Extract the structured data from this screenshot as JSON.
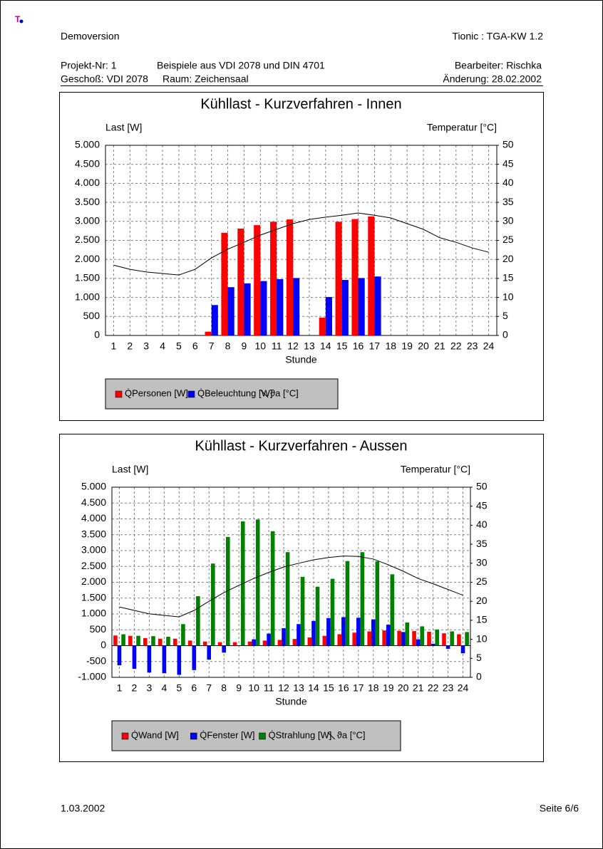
{
  "logo": "T",
  "header": {
    "left": "Demoversion",
    "right": "Tionic : TGA-KW 1.2",
    "rows": [
      [
        "Projekt-Nr: 1",
        "Beispiele aus VDI 2078 und DIN 4701",
        "Bearbeiter: Rischka"
      ],
      [
        "Geschoß: VDI 2078",
        "Raum: Zeichensaal",
        "Änderung: 28.02.2002"
      ]
    ]
  },
  "footer": {
    "date": "1.03.2002",
    "page": "Seite 6/6"
  },
  "chart_data": [
    {
      "type": "bar",
      "title": "Kühllast - Kurzverfahren - Innen",
      "ylabel": "Last [W]",
      "y2label": "Temperatur [°C]",
      "xlabel": "Stunde",
      "categories": [
        "1",
        "2",
        "3",
        "4",
        "5",
        "6",
        "7",
        "8",
        "9",
        "10",
        "11",
        "12",
        "13",
        "14",
        "15",
        "16",
        "17",
        "18",
        "19",
        "20",
        "21",
        "22",
        "23",
        "24"
      ],
      "series": [
        {
          "name": "Q̇Personen [W]",
          "color": "#ff0000",
          "values": [
            0,
            0,
            0,
            0,
            0,
            0,
            100,
            2700,
            2810,
            2900,
            2990,
            3050,
            0,
            470,
            2990,
            3060,
            3130,
            0,
            0,
            0,
            0,
            0,
            0,
            0
          ]
        },
        {
          "name": "Q̇Beleuchtung [W]",
          "color": "#0000ff",
          "values": [
            0,
            0,
            0,
            0,
            0,
            0,
            800,
            1270,
            1370,
            1430,
            1480,
            1510,
            0,
            1010,
            1460,
            1510,
            1550,
            0,
            0,
            0,
            0,
            0,
            0,
            0
          ]
        },
        {
          "name": "ϑa [°C]",
          "color": "#000000",
          "axis": "y2",
          "type": "line",
          "values": [
            18.5,
            17.4,
            16.7,
            16.3,
            15.9,
            17.4,
            20.4,
            22.7,
            24.5,
            26.4,
            27.9,
            29.4,
            30.5,
            31.1,
            31.6,
            32.2,
            31.6,
            30.9,
            29.4,
            27.9,
            25.7,
            24.5,
            23.0,
            21.9
          ]
        }
      ],
      "ylim": [
        0,
        5000
      ],
      "yticks": [
        0,
        500,
        {
          "value": 1000,
          "label": "1.000"
        },
        {
          "value": 1500,
          "label": "1.500"
        },
        {
          "value": 2000,
          "label": "2.000"
        },
        {
          "value": 2500,
          "label": "2.500"
        },
        {
          "value": 3000,
          "label": "3.000"
        },
        {
          "value": 3500,
          "label": "3.500"
        },
        {
          "value": 4000,
          "label": "4.000"
        },
        {
          "value": 4500,
          "label": "4.500"
        },
        {
          "value": 5000,
          "label": "5.000"
        }
      ],
      "y2lim": [
        0,
        50
      ],
      "y2ticks": [
        0,
        5,
        10,
        15,
        20,
        25,
        30,
        35,
        40,
        45,
        50
      ],
      "grid": true
    },
    {
      "type": "bar",
      "title": "Kühllast - Kurzverfahren - Aussen",
      "ylabel": "Last [W]",
      "y2label": "Temperatur [°C]",
      "xlabel": "Stunde",
      "categories": [
        "1",
        "2",
        "3",
        "4",
        "5",
        "6",
        "7",
        "8",
        "9",
        "10",
        "11",
        "12",
        "13",
        "14",
        "15",
        "16",
        "17",
        "18",
        "19",
        "20",
        "21",
        "22",
        "23",
        "24"
      ],
      "series": [
        {
          "name": "Q̇Wand [W]",
          "color": "#ff0000",
          "values": [
            320,
            310,
            240,
            220,
            220,
            160,
            130,
            110,
            110,
            130,
            160,
            180,
            210,
            260,
            310,
            360,
            410,
            450,
            480,
            470,
            460,
            440,
            390,
            360
          ]
        },
        {
          "name": "Q̇Fenster [W]",
          "color": "#0000ff",
          "values": [
            -620,
            -730,
            -850,
            -870,
            -920,
            -770,
            -440,
            -220,
            0,
            200,
            380,
            550,
            680,
            780,
            870,
            900,
            880,
            830,
            660,
            430,
            200,
            60,
            -100,
            -240
          ]
        },
        {
          "name": "Q̇Strahlung [W]",
          "color": "#008000",
          "values": [
            360,
            310,
            300,
            280,
            680,
            1560,
            2590,
            3430,
            3920,
            3980,
            3610,
            2950,
            2170,
            1860,
            2110,
            2670,
            2950,
            2660,
            2250,
            730,
            610,
            510,
            450,
            430
          ]
        },
        {
          "name": "ϑa [°C]",
          "color": "#000000",
          "axis": "y2",
          "type": "line",
          "values": [
            18.5,
            17.6,
            16.7,
            16.3,
            15.9,
            17.6,
            20.0,
            22.3,
            24.2,
            26.0,
            27.6,
            29.0,
            30.0,
            30.9,
            31.5,
            31.9,
            31.8,
            31.1,
            29.6,
            27.9,
            26.0,
            24.6,
            23.1,
            21.6
          ]
        }
      ],
      "ylim": [
        -1000,
        5000
      ],
      "yticks": [
        {
          "value": -1000,
          "label": "-1.000"
        },
        -500,
        0,
        500,
        {
          "value": 1000,
          "label": "1.000"
        },
        {
          "value": 1500,
          "label": "1.500"
        },
        {
          "value": 2000,
          "label": "2.000"
        },
        {
          "value": 2500,
          "label": "2.500"
        },
        {
          "value": 3000,
          "label": "3.000"
        },
        {
          "value": 3500,
          "label": "3.500"
        },
        {
          "value": 4000,
          "label": "4.000"
        },
        {
          "value": 4500,
          "label": "4.500"
        },
        {
          "value": 5000,
          "label": "5.000"
        }
      ],
      "y2lim": [
        0,
        50
      ],
      "y2ticks": [
        0,
        5,
        10,
        15,
        20,
        25,
        30,
        35,
        40,
        45,
        50
      ],
      "grid": true
    }
  ]
}
